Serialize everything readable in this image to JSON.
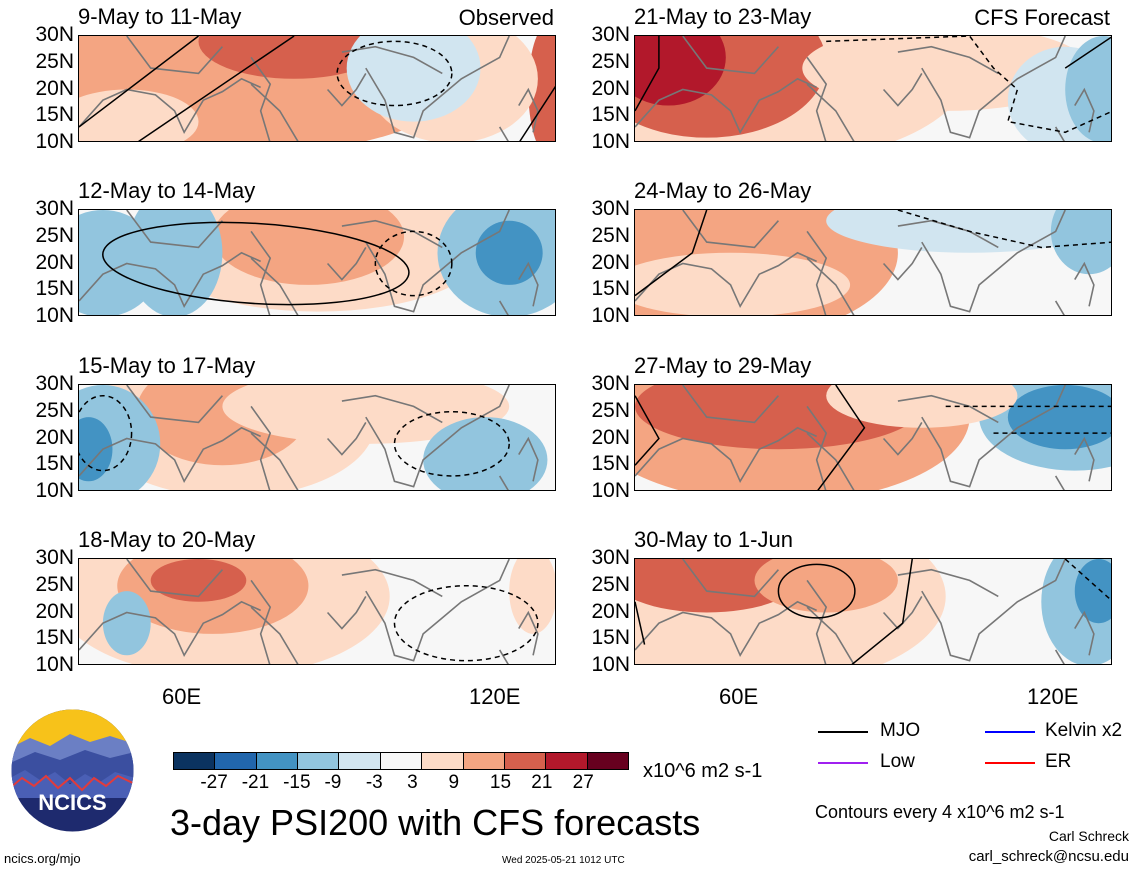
{
  "title": "3-day PSI200 with CFS forecasts",
  "labels": {
    "observed": "Observed",
    "forecast": "CFS Forecast"
  },
  "y_ticks": [
    "30N",
    "25N",
    "20N",
    "15N",
    "10N"
  ],
  "x_ticks": [
    "60E",
    "120E"
  ],
  "panels_left": [
    "9-May to 11-May",
    "12-May to 14-May",
    "15-May to 17-May",
    "18-May to 20-May"
  ],
  "panels_right": [
    "21-May to 23-May",
    "24-May to 26-May",
    "27-May to 29-May",
    "30-May to 1-Jun"
  ],
  "colorbar": {
    "ticks": [
      "-27",
      "-21",
      "-15",
      "-9",
      "-3",
      "3",
      "9",
      "15",
      "21",
      "27"
    ],
    "colors": [
      "#0b3360",
      "#2166ac",
      "#4393c3",
      "#92c5de",
      "#d1e5f0",
      "#f7f7f7",
      "#fddbc7",
      "#f4a582",
      "#d6604d",
      "#b2182b",
      "#67001f"
    ],
    "units": "x10^6 m2 s-1"
  },
  "legend": {
    "mjo": "MJO",
    "kelvin": "Kelvin x2",
    "low": "Low",
    "er": "ER",
    "mjo_color": "#000000",
    "kelvin_color": "#0000ff",
    "low_color": "#a020f0",
    "er_color": "#ff0000"
  },
  "contour_note": "Contours every 4 x10^6 m2 s-1",
  "author": "Carl Schreck",
  "email": "carl_schreck@ncsu.edu",
  "url": "ncics.org/mjo",
  "timestamp": "Wed 2025-05-21 1012 UTC",
  "logo_text": "NCICS"
}
